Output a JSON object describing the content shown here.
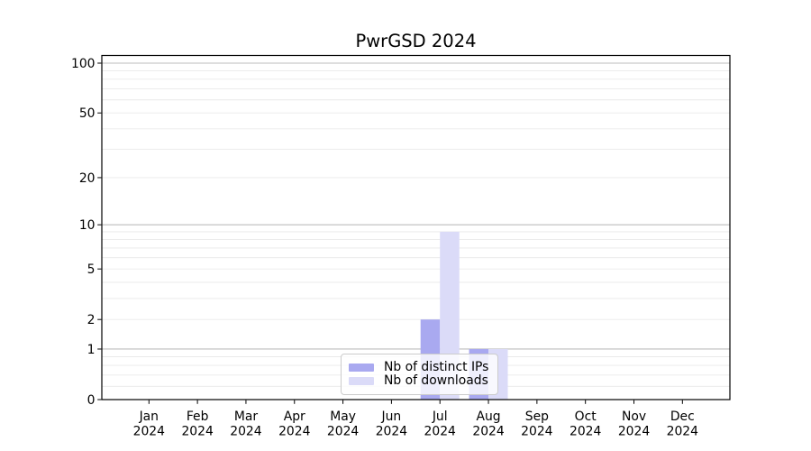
{
  "chart_data": {
    "type": "bar",
    "title": "PwrGSD 2024",
    "categories": [
      "Jan",
      "Feb",
      "Mar",
      "Apr",
      "May",
      "Jun",
      "Jul",
      "Aug",
      "Sep",
      "Oct",
      "Nov",
      "Dec"
    ],
    "x_year": "2024",
    "series": [
      {
        "name": "Nb of distinct IPs",
        "color": "#a9a9f0",
        "values": [
          0,
          0,
          0,
          0,
          0,
          0,
          2,
          1,
          0,
          0,
          0,
          0
        ]
      },
      {
        "name": "Nb of downloads",
        "color": "#dbdbf8",
        "values": [
          0,
          0,
          0,
          0,
          0,
          0,
          9,
          1,
          0,
          0,
          0,
          0
        ]
      }
    ],
    "yscale": "log10(1+x)",
    "ylim": [
      0,
      112
    ],
    "yticks": [
      0,
      1,
      2,
      5,
      10,
      20,
      50,
      100
    ],
    "y_major_gridlines": [
      1,
      10,
      100
    ],
    "y_minor_gridlines": [
      0.2,
      0.4,
      0.6,
      0.8,
      2,
      3,
      4,
      5,
      6,
      7,
      8,
      9,
      20,
      30,
      40,
      50,
      60,
      70,
      80,
      90
    ],
    "grid": true,
    "legend_position": "lower center",
    "colors": {
      "background": "#ffffff",
      "spine": "#000000",
      "grid_major": "#bcbcbc",
      "grid_minor": "#e9e9e9",
      "tick_label": "#000000"
    }
  }
}
